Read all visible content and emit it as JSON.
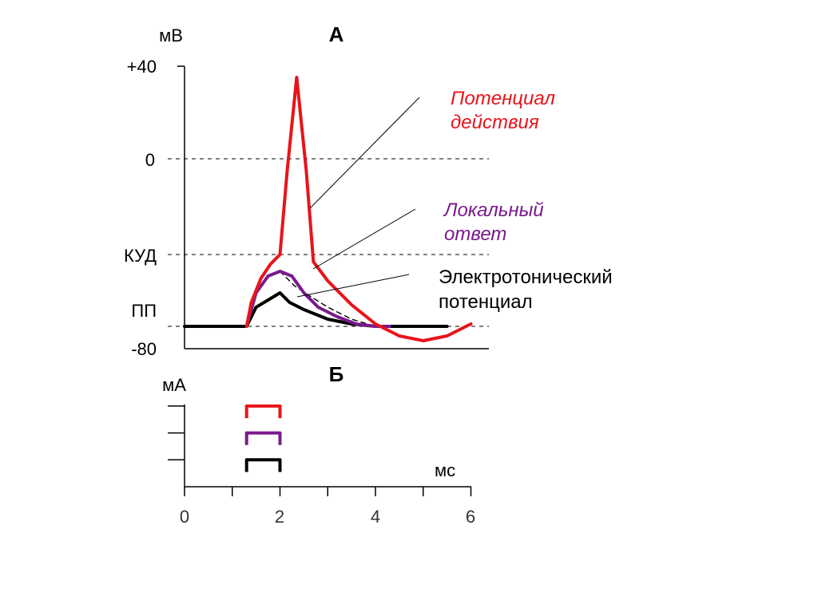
{
  "chart_data": [
    {
      "panel": "А",
      "type": "line",
      "y_unit_label": "мВ",
      "ytick_labels": [
        "+40",
        "0",
        "КУД",
        "ПП",
        "-80"
      ],
      "ylim": [
        -80,
        40
      ],
      "x_domain_ms": [
        0,
        6
      ],
      "reference_lines": [
        {
          "label": "0",
          "y": 0
        },
        {
          "label": "КУД",
          "y": -40
        },
        {
          "label": "ПП",
          "y": -70
        }
      ],
      "series": [
        {
          "name": "Потенциал действия",
          "color": "#e8141b",
          "points": [
            [
              1.3,
              -70
            ],
            [
              1.4,
              -60
            ],
            [
              1.6,
              -50
            ],
            [
              1.8,
              -44
            ],
            [
              2.0,
              -40
            ],
            [
              2.15,
              -5
            ],
            [
              2.35,
              34
            ],
            [
              2.55,
              -5
            ],
            [
              2.7,
              -43
            ],
            [
              3.0,
              -51
            ],
            [
              3.5,
              -61
            ],
            [
              4.0,
              -69
            ],
            [
              4.5,
              -74
            ],
            [
              5.0,
              -76
            ],
            [
              5.5,
              -74
            ],
            [
              6.0,
              -69
            ]
          ]
        },
        {
          "name": "Локальный ответ",
          "color": "#7a1a8c",
          "points": [
            [
              1.3,
              -70
            ],
            [
              1.5,
              -56
            ],
            [
              1.75,
              -49
            ],
            [
              2.0,
              -47
            ],
            [
              2.25,
              -49
            ],
            [
              2.5,
              -56
            ],
            [
              2.8,
              -62
            ],
            [
              3.2,
              -66
            ],
            [
              3.6,
              -69
            ],
            [
              4.0,
              -70
            ],
            [
              4.3,
              -70
            ]
          ]
        },
        {
          "name": "Электротонический потенциал",
          "color": "#000000",
          "points": [
            [
              0.0,
              -70
            ],
            [
              1.3,
              -70
            ],
            [
              1.5,
              -62
            ],
            [
              1.75,
              -59
            ],
            [
              2.0,
              -56
            ],
            [
              2.2,
              -60
            ],
            [
              2.5,
              -63
            ],
            [
              3.0,
              -67
            ],
            [
              3.5,
              -69
            ],
            [
              4.0,
              -70
            ],
            [
              5.5,
              -70
            ]
          ]
        },
        {
          "name": "",
          "color": "#000000",
          "dashed": true,
          "points": [
            [
              2.0,
              -47
            ],
            [
              2.3,
              -53
            ],
            [
              2.6,
              -57
            ],
            [
              3.0,
              -62
            ],
            [
              3.5,
              -67
            ],
            [
              4.0,
              -70
            ]
          ]
        }
      ],
      "annotations": [
        {
          "text_lines": [
            "Потенциал",
            "действия"
          ],
          "color": "#e8141b",
          "italic": true,
          "points_to": [
            2.65,
            -20
          ]
        },
        {
          "text_lines": [
            "Локальный",
            "ответ"
          ],
          "color": "#7a1a8c",
          "italic": true,
          "points_to": [
            2.1,
            -48
          ]
        },
        {
          "text_lines": [
            "Электротонический",
            "потенциал"
          ],
          "color": "#000000",
          "italic": false,
          "points_to": [
            2.0,
            -58
          ]
        }
      ]
    },
    {
      "panel": "Б",
      "type": "line",
      "y_unit_label": "мА",
      "x_unit_label": "мс",
      "xtick_labels": [
        "0",
        "2",
        "4",
        "6"
      ],
      "xlim": [
        0,
        6
      ],
      "ylim": [
        0,
        3
      ],
      "series": [
        {
          "name": "",
          "color": "#e8141b",
          "points": [
            [
              1.3,
              2.55
            ],
            [
              1.3,
              3.0
            ],
            [
              2.0,
              3.0
            ],
            [
              2.0,
              2.55
            ]
          ]
        },
        {
          "name": "",
          "color": "#7a1a8c",
          "points": [
            [
              1.3,
              1.55
            ],
            [
              1.3,
              2.0
            ],
            [
              2.0,
              2.0
            ],
            [
              2.0,
              1.55
            ]
          ]
        },
        {
          "name": "",
          "color": "#000000",
          "points": [
            [
              1.3,
              0.55
            ],
            [
              1.3,
              1.0
            ],
            [
              2.0,
              1.0
            ],
            [
              2.0,
              0.55
            ]
          ]
        }
      ]
    }
  ]
}
